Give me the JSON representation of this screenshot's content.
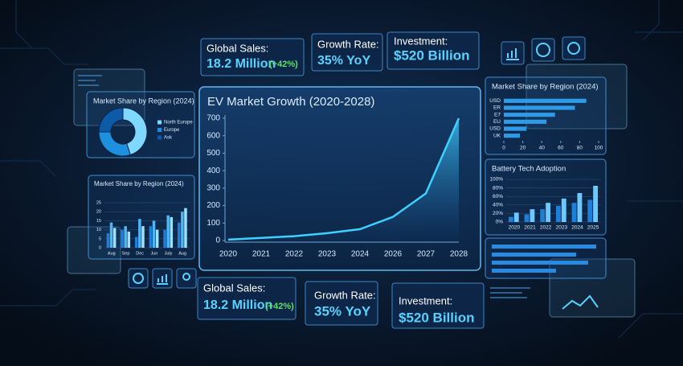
{
  "kpis_top": [
    {
      "label": "Global Sales:",
      "value": "18.2 Million",
      "change": "(+42%)"
    },
    {
      "label": "Growth Rate:",
      "value": "35% YoY"
    },
    {
      "label": "Investment:",
      "value": "$520 Billion"
    }
  ],
  "kpis_bottom": [
    {
      "label": "Global Sales:",
      "value": "18.2 Million",
      "change": "(+42%)"
    },
    {
      "label": "Growth Rate:",
      "value": "35% YoY"
    },
    {
      "label": "Investment:",
      "value": "$520 Billion"
    }
  ],
  "chart_data": [
    {
      "type": "line",
      "title": "EV Market Growth (2020-2028)",
      "categories": [
        "2020",
        "2021",
        "2022",
        "2023",
        "2024",
        "2026",
        "2027",
        "2028"
      ],
      "values": [
        5,
        15,
        25,
        42,
        65,
        135,
        270,
        700
      ],
      "color": "#3fd0ff",
      "ylim": [
        0,
        700
      ],
      "yticks": [
        0,
        100,
        200,
        300,
        400,
        500,
        600,
        700
      ]
    },
    {
      "type": "donut",
      "title": "Market Share by Region (2024)",
      "categories": [
        "North Europe",
        "Europe",
        "Ask"
      ],
      "values": [
        45,
        30,
        25
      ],
      "colors": [
        "#7fd8ff",
        "#1e90e0",
        "#0d5aa8"
      ]
    },
    {
      "type": "bar",
      "title": "Market Share by Region (2024)",
      "categories": [
        "Aug",
        "Sep",
        "Dec",
        "Jun",
        "July",
        "Aug"
      ],
      "series": [
        {
          "color": "#1f7fd6",
          "values": [
            8,
            10,
            6,
            12,
            10,
            14
          ]
        },
        {
          "color": "#4fb6f5",
          "values": [
            14,
            12,
            16,
            15,
            18,
            20
          ]
        },
        {
          "color": "#9ee0ff",
          "values": [
            11,
            9,
            12,
            10,
            17,
            22
          ]
        }
      ],
      "ylim": [
        0,
        25
      ],
      "yticks": [
        0,
        5,
        10,
        15,
        20,
        25
      ]
    },
    {
      "type": "barh",
      "title": "Market Share by Region (2024)",
      "categories": [
        "USD",
        "ER",
        "E7",
        "EU",
        "USD",
        "UK"
      ],
      "values": [
        87,
        75,
        54,
        45,
        24,
        17
      ],
      "color": "#2f9ae8",
      "xlim": [
        0,
        100
      ],
      "xticks": [
        0,
        20,
        40,
        60,
        80,
        100
      ]
    },
    {
      "type": "bar",
      "title": "Battery Tech Adoption",
      "categories": [
        "2020",
        "2021",
        "2022",
        "2023",
        "2024",
        "2025"
      ],
      "series": [
        {
          "color": "#1f7fd6",
          "values": [
            12,
            18,
            30,
            38,
            45,
            52
          ]
        },
        {
          "color": "#6cc8ff",
          "values": [
            22,
            30,
            45,
            55,
            68,
            85
          ]
        }
      ],
      "ylim": [
        0,
        100
      ],
      "yticks": [
        {
          "value": 0,
          "label": "0%"
        },
        {
          "value": 20,
          "label": "20%"
        },
        {
          "value": 40,
          "label": "40%"
        },
        {
          "value": 60,
          "label": "60%"
        },
        {
          "value": 80,
          "label": "80%"
        },
        {
          "value": 100,
          "label": "100%"
        }
      ]
    }
  ]
}
